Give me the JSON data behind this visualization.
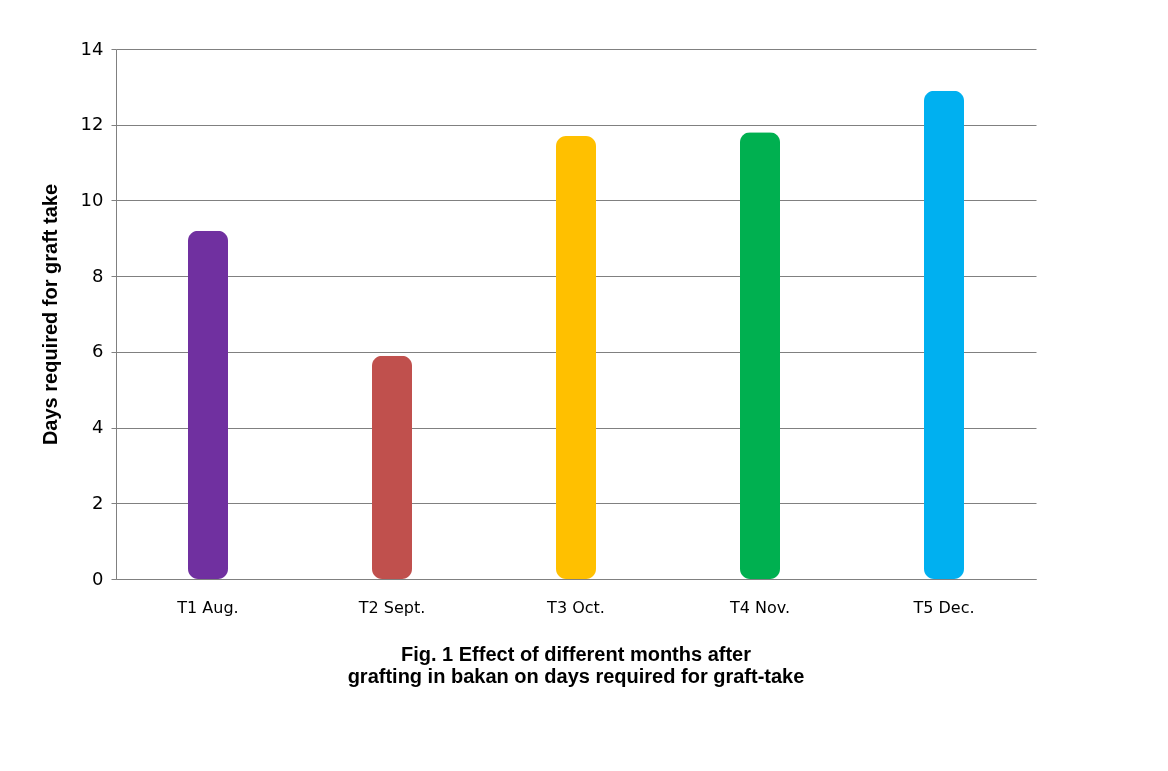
{
  "chart_data": {
    "type": "bar",
    "title": "Fig. 1 Effect of  different months  after grafting in bakan on days required for graft-take",
    "ylabel": "Days required for  graft take",
    "categories": [
      "T1 Aug.",
      "T2 Sept.",
      "T3 Oct.",
      "T4 Nov.",
      "T5 Dec."
    ],
    "values": [
      9.2,
      5.9,
      11.7,
      11.8,
      12.9
    ],
    "colors": [
      "#7030a0",
      "#c0504d",
      "#ffc000",
      "#00b050",
      "#00b0f0"
    ],
    "ylim": [
      0,
      14
    ],
    "yticks": [
      0,
      2,
      4,
      6,
      8,
      10,
      12,
      14
    ],
    "grid": "y"
  }
}
